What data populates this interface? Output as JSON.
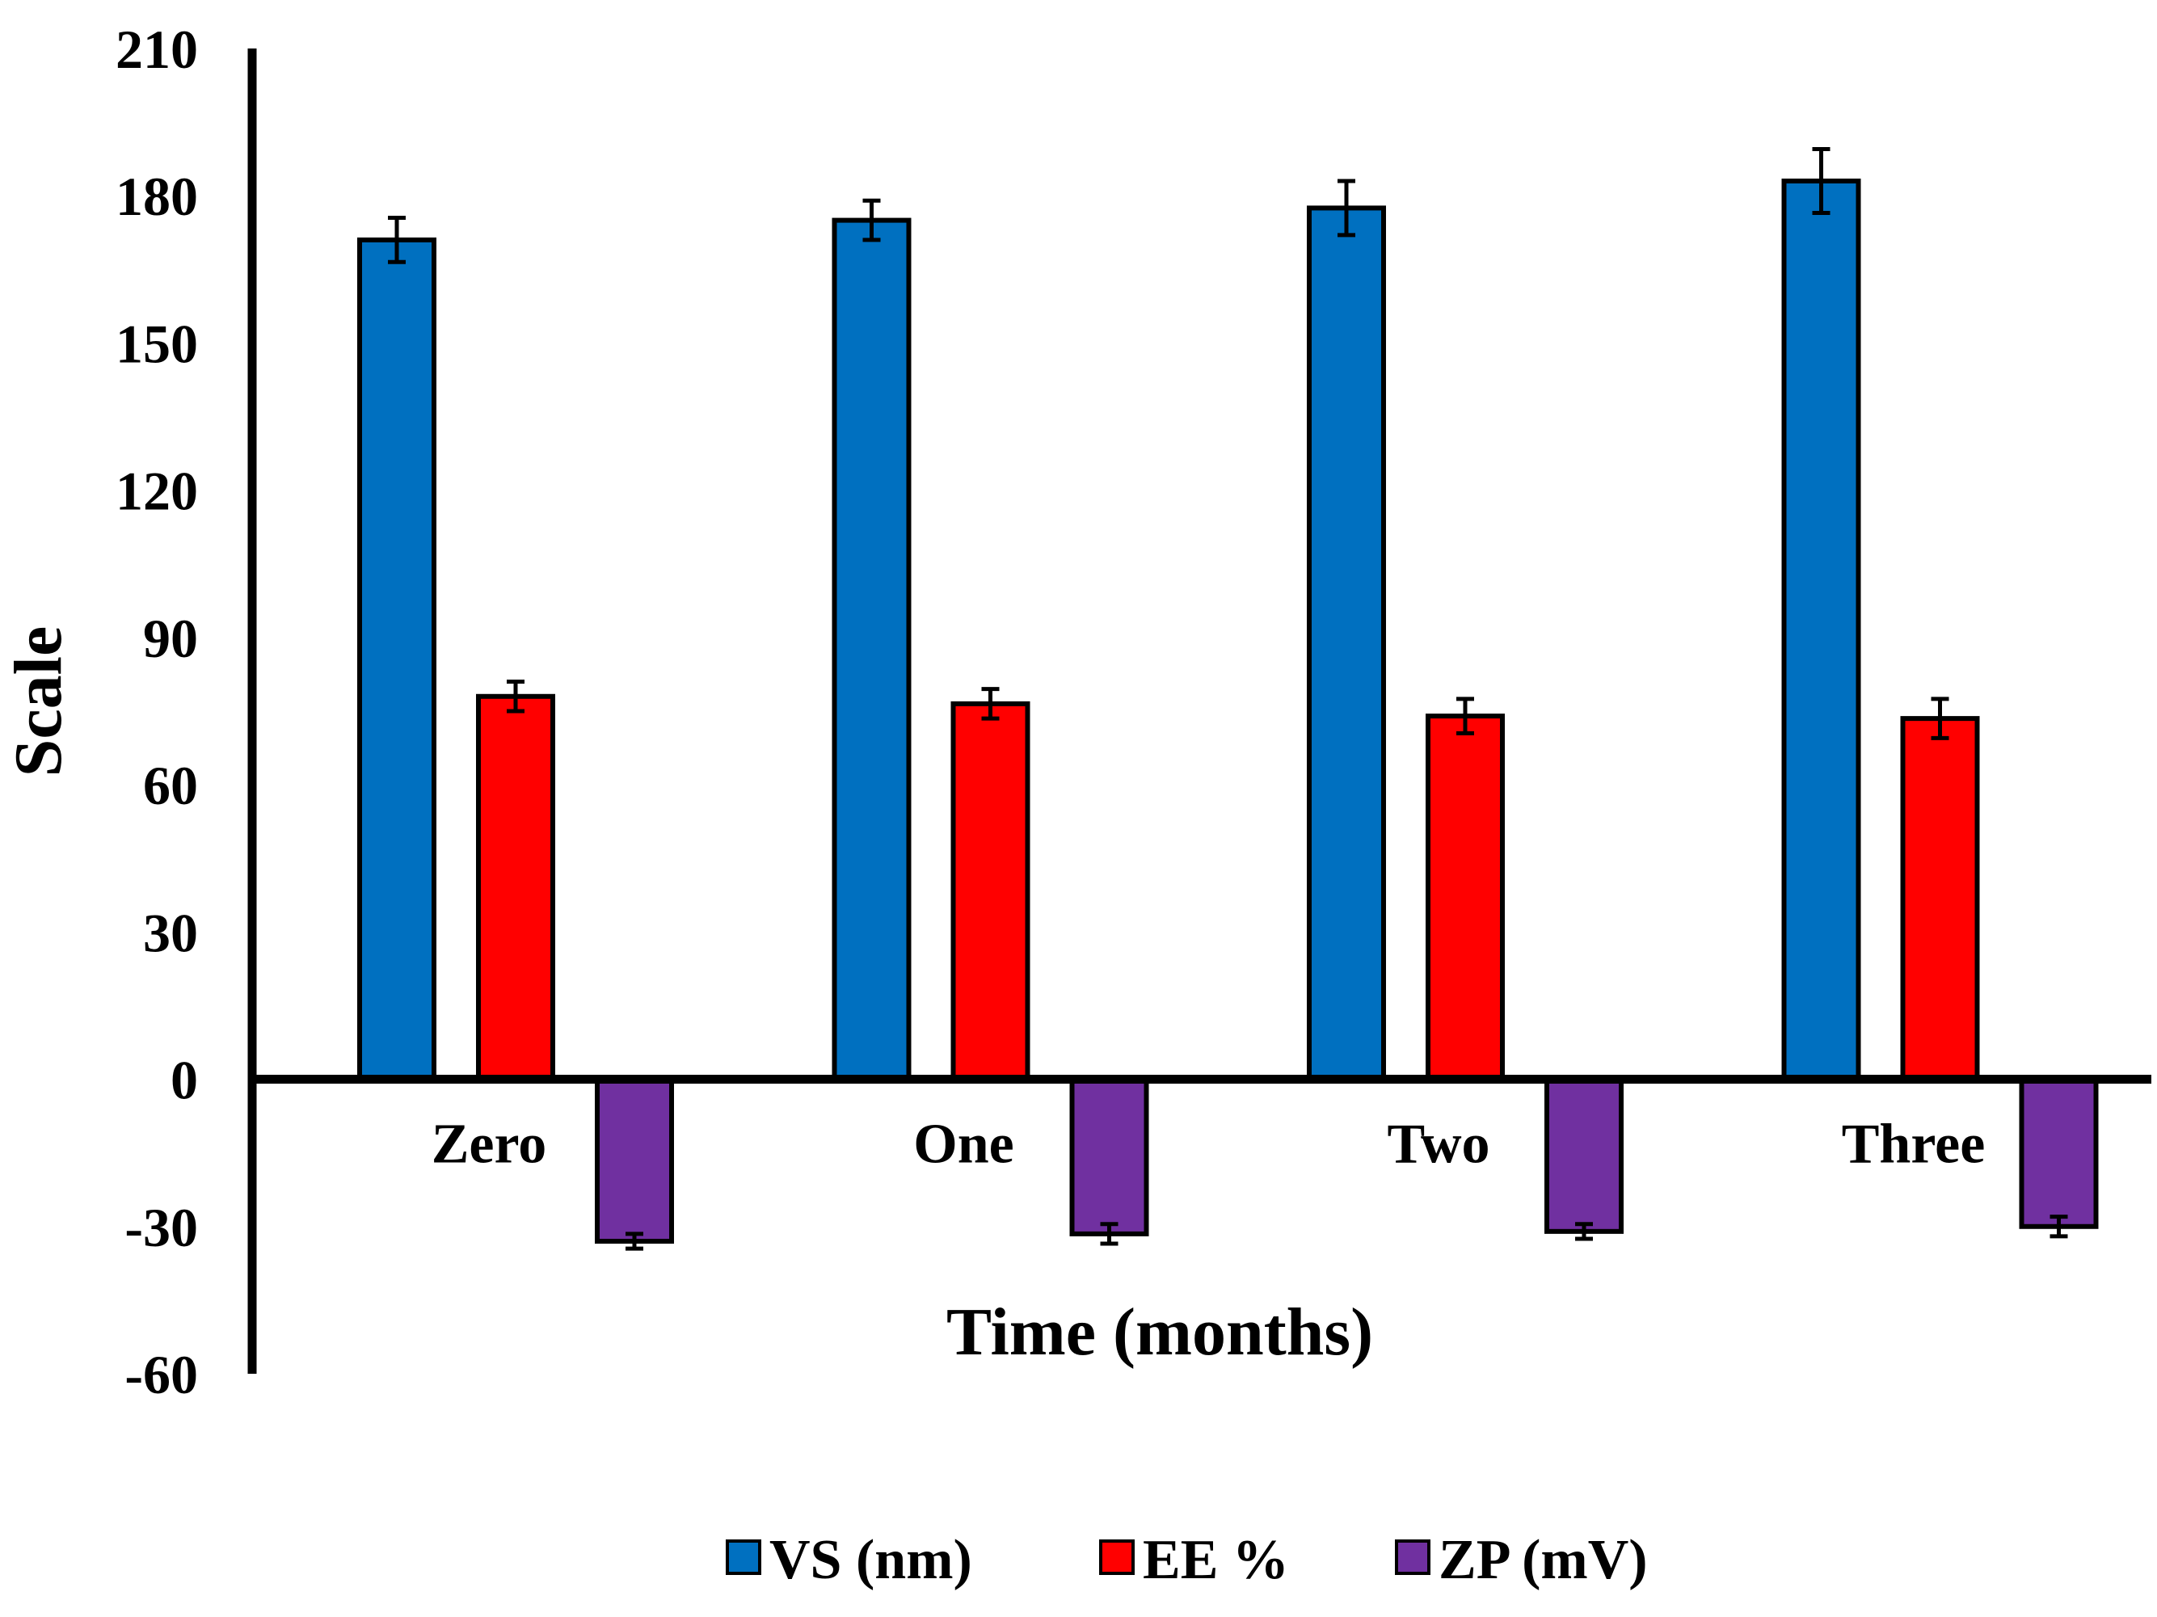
{
  "chart_data": {
    "type": "bar",
    "title": "",
    "xlabel": "Time (months)",
    "ylabel": "Scale",
    "ylim": [
      -60,
      210
    ],
    "yticks": [
      210,
      180,
      150,
      120,
      90,
      60,
      30,
      0,
      -30,
      -60
    ],
    "categories": [
      "Zero",
      "One",
      "Two",
      "Three"
    ],
    "series": [
      {
        "name": "VS (nm)",
        "color": "#0070C0",
        "values": [
          171,
          175,
          177.5,
          183
        ],
        "errors": [
          4.5,
          4,
          5.5,
          6.5
        ]
      },
      {
        "name": "EE %",
        "color": "#FF0000",
        "values": [
          78,
          76.5,
          74,
          73.5
        ],
        "errors": [
          3,
          3,
          3.5,
          4
        ]
      },
      {
        "name": "ZP (mV)",
        "color": "#7030A0",
        "values": [
          -33,
          -31.5,
          -31,
          -30
        ],
        "errors": [
          1.5,
          2,
          1.5,
          2
        ]
      }
    ],
    "grid": false,
    "legend_position": "bottom"
  }
}
